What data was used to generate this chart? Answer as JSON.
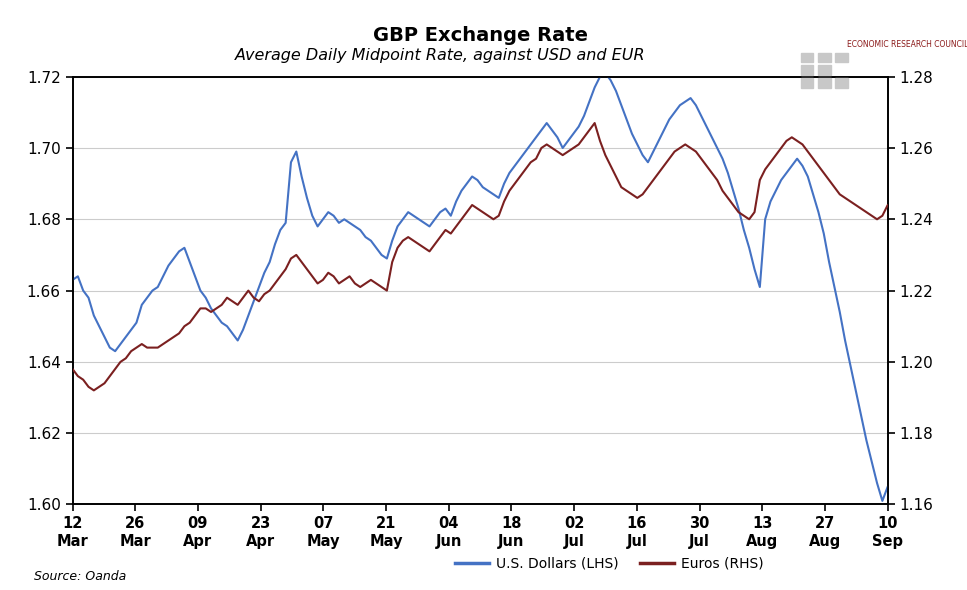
{
  "title": "GBP Exchange Rate",
  "subtitle": "Average Daily Midpoint Rate, against USD and EUR",
  "source": "Source: Oanda",
  "watermark_text": "ECONOMIC RESEARCH COUNCIL",
  "usd_label": "U.S. Dollars (LHS)",
  "eur_label": "Euros (RHS)",
  "usd_color": "#4472c4",
  "eur_color": "#7b2020",
  "ylim_lhs": [
    1.6,
    1.72
  ],
  "ylim_rhs": [
    1.16,
    1.28
  ],
  "yticks_lhs": [
    1.6,
    1.62,
    1.64,
    1.66,
    1.68,
    1.7,
    1.72
  ],
  "yticks_rhs": [
    1.16,
    1.18,
    1.2,
    1.22,
    1.24,
    1.26,
    1.28
  ],
  "x_tick_days": [
    "12",
    "26",
    "09",
    "23",
    "07",
    "21",
    "04",
    "18",
    "02",
    "16",
    "30",
    "13",
    "27",
    "10"
  ],
  "x_tick_months": [
    "Mar",
    "Mar",
    "Apr",
    "Apr",
    "May",
    "May",
    "Jun",
    "Jun",
    "Jul",
    "Jul",
    "Jul",
    "Aug",
    "Aug",
    "Sep"
  ],
  "background_color": "#ffffff",
  "grid_color": "#cccccc",
  "usd_data": [
    1.663,
    1.664,
    1.66,
    1.658,
    1.653,
    1.65,
    1.647,
    1.644,
    1.643,
    1.645,
    1.647,
    1.649,
    1.651,
    1.656,
    1.658,
    1.66,
    1.661,
    1.664,
    1.667,
    1.669,
    1.671,
    1.672,
    1.668,
    1.664,
    1.66,
    1.658,
    1.655,
    1.653,
    1.651,
    1.65,
    1.648,
    1.646,
    1.649,
    1.653,
    1.657,
    1.661,
    1.665,
    1.668,
    1.673,
    1.677,
    1.679,
    1.696,
    1.699,
    1.692,
    1.686,
    1.681,
    1.678,
    1.68,
    1.682,
    1.681,
    1.679,
    1.68,
    1.679,
    1.678,
    1.677,
    1.675,
    1.674,
    1.672,
    1.67,
    1.669,
    1.674,
    1.678,
    1.68,
    1.682,
    1.681,
    1.68,
    1.679,
    1.678,
    1.68,
    1.682,
    1.683,
    1.681,
    1.685,
    1.688,
    1.69,
    1.692,
    1.691,
    1.689,
    1.688,
    1.687,
    1.686,
    1.69,
    1.693,
    1.695,
    1.697,
    1.699,
    1.701,
    1.703,
    1.705,
    1.707,
    1.705,
    1.703,
    1.7,
    1.702,
    1.704,
    1.706,
    1.709,
    1.713,
    1.717,
    1.72,
    1.721,
    1.719,
    1.716,
    1.712,
    1.708,
    1.704,
    1.701,
    1.698,
    1.696,
    1.699,
    1.702,
    1.705,
    1.708,
    1.71,
    1.712,
    1.713,
    1.714,
    1.712,
    1.709,
    1.706,
    1.703,
    1.7,
    1.697,
    1.693,
    1.688,
    1.683,
    1.677,
    1.672,
    1.666,
    1.661,
    1.68,
    1.685,
    1.688,
    1.691,
    1.693,
    1.695,
    1.697,
    1.695,
    1.692,
    1.687,
    1.682,
    1.676,
    1.668,
    1.661,
    1.654,
    1.646,
    1.639,
    1.632,
    1.625,
    1.618,
    1.612,
    1.606,
    1.601,
    1.605
  ],
  "eur_data": [
    1.198,
    1.196,
    1.195,
    1.193,
    1.192,
    1.193,
    1.194,
    1.196,
    1.198,
    1.2,
    1.201,
    1.203,
    1.204,
    1.205,
    1.204,
    1.204,
    1.204,
    1.205,
    1.206,
    1.207,
    1.208,
    1.21,
    1.211,
    1.213,
    1.215,
    1.215,
    1.214,
    1.215,
    1.216,
    1.218,
    1.217,
    1.216,
    1.218,
    1.22,
    1.218,
    1.217,
    1.219,
    1.22,
    1.222,
    1.224,
    1.226,
    1.229,
    1.23,
    1.228,
    1.226,
    1.224,
    1.222,
    1.223,
    1.225,
    1.224,
    1.222,
    1.223,
    1.224,
    1.222,
    1.221,
    1.222,
    1.223,
    1.222,
    1.221,
    1.22,
    1.228,
    1.232,
    1.234,
    1.235,
    1.234,
    1.233,
    1.232,
    1.231,
    1.233,
    1.235,
    1.237,
    1.236,
    1.238,
    1.24,
    1.242,
    1.244,
    1.243,
    1.242,
    1.241,
    1.24,
    1.241,
    1.245,
    1.248,
    1.25,
    1.252,
    1.254,
    1.256,
    1.257,
    1.26,
    1.261,
    1.26,
    1.259,
    1.258,
    1.259,
    1.26,
    1.261,
    1.263,
    1.265,
    1.267,
    1.262,
    1.258,
    1.255,
    1.252,
    1.249,
    1.248,
    1.247,
    1.246,
    1.247,
    1.249,
    1.251,
    1.253,
    1.255,
    1.257,
    1.259,
    1.26,
    1.261,
    1.26,
    1.259,
    1.257,
    1.255,
    1.253,
    1.251,
    1.248,
    1.246,
    1.244,
    1.242,
    1.241,
    1.24,
    1.242,
    1.251,
    1.254,
    1.256,
    1.258,
    1.26,
    1.262,
    1.263,
    1.262,
    1.261,
    1.259,
    1.257,
    1.255,
    1.253,
    1.251,
    1.249,
    1.247,
    1.246,
    1.245,
    1.244,
    1.243,
    1.242,
    1.241,
    1.24,
    1.241,
    1.244
  ]
}
